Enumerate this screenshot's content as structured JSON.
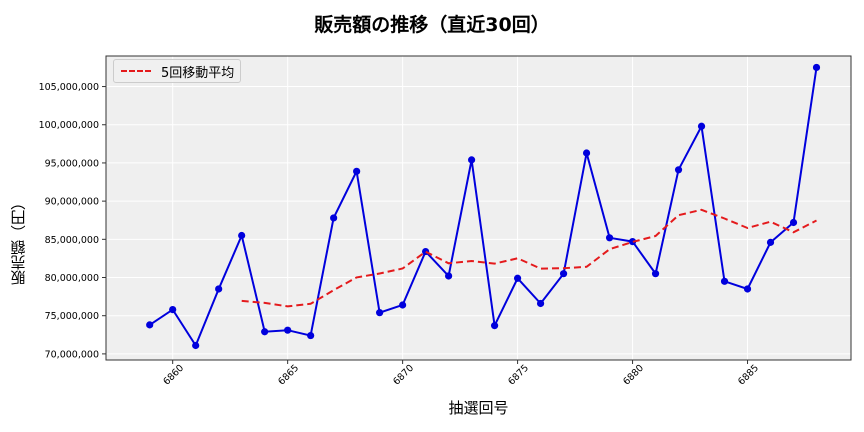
{
  "chart_data": {
    "type": "line",
    "title": "販売額の推移（直近30回）",
    "xlabel": "抽選回号",
    "ylabel": "販売額（円）",
    "x": [
      6859,
      6860,
      6861,
      6862,
      6863,
      6864,
      6865,
      6866,
      6867,
      6868,
      6869,
      6870,
      6871,
      6872,
      6873,
      6874,
      6875,
      6876,
      6877,
      6878,
      6879,
      6880,
      6881,
      6882,
      6883,
      6884,
      6885,
      6886,
      6887,
      6888
    ],
    "xticks": [
      6860,
      6865,
      6870,
      6875,
      6880,
      6885
    ],
    "yticks": [
      70000000,
      75000000,
      80000000,
      85000000,
      90000000,
      95000000,
      100000000,
      105000000
    ],
    "ytick_labels": [
      "70,000,000",
      "75,000,000",
      "80,000,000",
      "85,000,000",
      "90,000,000",
      "95,000,000",
      "100,000,000",
      "105,000,000"
    ],
    "ylim": [
      69200000,
      109000000
    ],
    "xlim": [
      6857.1,
      6889.5
    ],
    "grid": true,
    "legend_position": "upper left",
    "series": [
      {
        "name": "販売額",
        "style": "solid-line-with-markers",
        "color": "#0000dd",
        "show_in_legend": false,
        "values": [
          73800000,
          75800000,
          71100000,
          78500000,
          85500000,
          72900000,
          73100000,
          72400000,
          87800000,
          93900000,
          75400000,
          76400000,
          83400000,
          80200000,
          95400000,
          73700000,
          79900000,
          76600000,
          80500000,
          96300000,
          85200000,
          84700000,
          80500000,
          94100000,
          99800000,
          79500000,
          78500000,
          84600000,
          87200000,
          107500000
        ]
      },
      {
        "name": "5回移動平均",
        "style": "dashed",
        "color": "#e41a1c",
        "show_in_legend": true,
        "values": [
          null,
          null,
          null,
          null,
          76940000,
          76680000,
          76220000,
          76560000,
          78340000,
          80020000,
          80520000,
          81180000,
          83380000,
          81860000,
          82160000,
          81820000,
          82520000,
          81160000,
          81220000,
          81400000,
          83700000,
          84660000,
          85440000,
          88160000,
          88860000,
          87720000,
          86480000,
          87300000,
          85920000,
          87460000
        ]
      }
    ]
  },
  "legend": {
    "label": "5回移動平均"
  }
}
